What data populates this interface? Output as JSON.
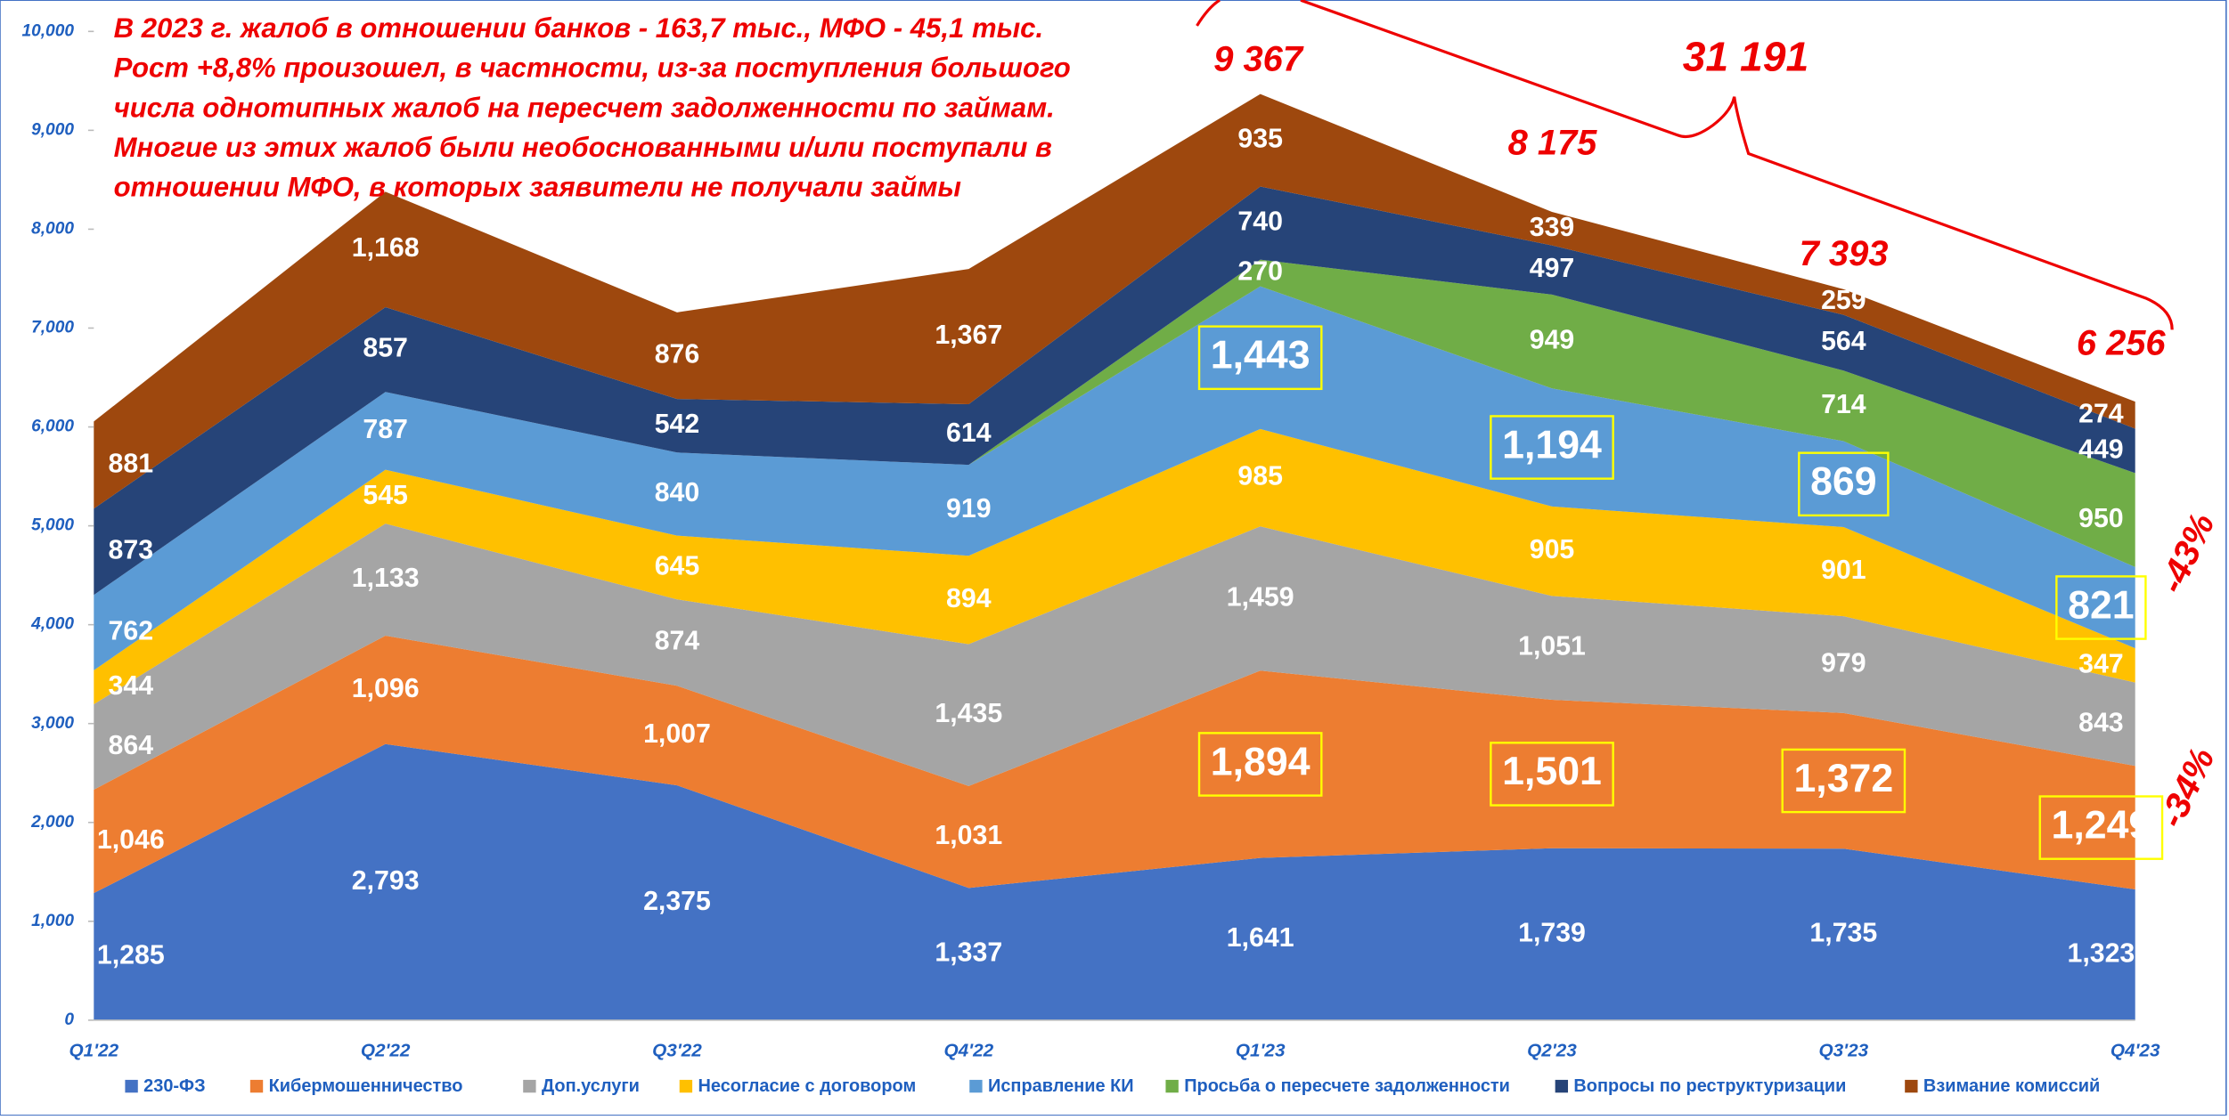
{
  "chart_data": {
    "type": "stacked_area",
    "categories": [
      "Q1'22",
      "Q2'22",
      "Q3'22",
      "Q4'22",
      "Q1'23",
      "Q2'23",
      "Q3'23",
      "Q4'23"
    ],
    "series": [
      {
        "name": "230-ФЗ",
        "color": "#4472c4",
        "values": [
          1285,
          2793,
          2375,
          1337,
          1641,
          1739,
          1735,
          1323
        ]
      },
      {
        "name": "Кибермошенничество",
        "color": "#ed7d31",
        "values": [
          1046,
          1096,
          1007,
          1031,
          1894,
          1501,
          1372,
          1249
        ]
      },
      {
        "name": "Доп.услуги",
        "color": "#a5a5a5",
        "values": [
          864,
          1133,
          874,
          1435,
          1459,
          1051,
          979,
          843
        ]
      },
      {
        "name": "Несогласие с договором",
        "color": "#ffc000",
        "values": [
          344,
          545,
          645,
          894,
          985,
          905,
          901,
          347
        ]
      },
      {
        "name": "Исправление КИ",
        "color": "#5b9bd5",
        "values": [
          762,
          787,
          840,
          919,
          1443,
          1194,
          869,
          821
        ]
      },
      {
        "name": "Просьба о пересчете задолженности",
        "color": "#70ad47",
        "values": [
          0,
          0,
          0,
          0,
          270,
          949,
          714,
          950
        ]
      },
      {
        "name": "Вопросы по реструктуризации",
        "color": "#264478",
        "values": [
          873,
          857,
          542,
          614,
          740,
          497,
          564,
          449
        ]
      },
      {
        "name": "Взимание комиссий",
        "color": "#9e480e",
        "values": [
          881,
          1168,
          876,
          1367,
          935,
          339,
          259,
          274
        ]
      }
    ],
    "ylim": [
      0,
      10000
    ],
    "yticks": [
      0,
      {
        "value": 1000,
        "label": "1,000"
      },
      {
        "value": 2000,
        "label": "2,000"
      },
      {
        "value": 3000,
        "label": "3,000"
      },
      {
        "value": 4000,
        "label": "4,000"
      },
      {
        "value": 5000,
        "label": "5,000"
      },
      {
        "value": 6000,
        "label": "6,000"
      },
      {
        "value": 7000,
        "label": "7,000"
      },
      {
        "value": 8000,
        "label": "8,000"
      },
      {
        "value": 9000,
        "label": "9,000"
      },
      {
        "value": 10000,
        "label": "10,000"
      }
    ],
    "note_lines": [
      "В 2023 г. жалоб в отношении банков - 163,7 тыс., МФО - 45,1 тыс.",
      "Рост +8,8% произошел, в частности, из-за поступления большого",
      "числа однотипных жалоб на пересчет задолженности по займам.",
      "Многие из этих жалоб были необоснованными и/или поступали в",
      "отношении МФО, в которых заявители не получали займы"
    ],
    "annotations": [
      "9 367",
      "8 175",
      "7 393",
      "6 256",
      "31 191",
      "-43%",
      "-34%"
    ],
    "legend": "bottom"
  }
}
